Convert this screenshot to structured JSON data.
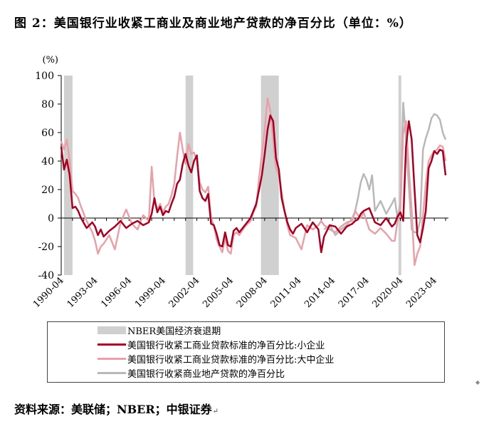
{
  "title": "图 2：美国银行业收紧工商业及商业地产贷款的净百分比（单位：%）",
  "source": "资料来源：美联储；NBER；中银证券",
  "chart_data": {
    "type": "line",
    "ylabel": "(%)",
    "ylim": [
      -40,
      100
    ],
    "yticks": [
      -40,
      -20,
      0,
      20,
      40,
      60,
      80,
      100
    ],
    "xlim": [
      1990.25,
      2024.5
    ],
    "xtick_labels": [
      "1990-04",
      "1993-04",
      "1996-04",
      "1999-04",
      "2002-04",
      "2005-04",
      "2008-04",
      "2011-04",
      "2014-04",
      "2017-04",
      "2020-04",
      "2023-04"
    ],
    "grid": false,
    "legend_position": "bottom",
    "recessions": [
      {
        "name": "NBER美国经济衰退期",
        "color": "#d0d0d0",
        "periods": [
          [
            1990.5,
            1991.25
          ],
          [
            2001.25,
            2001.92
          ],
          [
            2007.92,
            2009.5
          ],
          [
            2020.08,
            2020.33
          ]
        ]
      }
    ],
    "series": [
      {
        "name": "美国银行收紧工商业贷款标准的净百分比:小企业",
        "color": "#a50021",
        "x": [
          1990.25,
          1990.5,
          1990.75,
          1991.0,
          1991.25,
          1991.5,
          1991.75,
          1992.0,
          1992.5,
          1993.0,
          1993.25,
          1993.5,
          1993.75,
          1994.0,
          1994.5,
          1995.0,
          1995.5,
          1996.0,
          1996.5,
          1997.0,
          1997.5,
          1998.0,
          1998.25,
          1998.5,
          1998.75,
          1999.0,
          1999.25,
          1999.5,
          1999.75,
          2000.0,
          2000.25,
          2000.5,
          2000.75,
          2001.0,
          2001.25,
          2001.5,
          2001.75,
          2002.0,
          2002.25,
          2002.5,
          2002.75,
          2003.0,
          2003.25,
          2003.5,
          2003.75,
          2004.0,
          2004.25,
          2004.5,
          2004.75,
          2005.0,
          2005.25,
          2005.5,
          2005.75,
          2006.0,
          2006.5,
          2007.0,
          2007.25,
          2007.5,
          2007.75,
          2008.0,
          2008.25,
          2008.5,
          2008.75,
          2009.0,
          2009.25,
          2009.5,
          2009.75,
          2010.0,
          2010.25,
          2010.5,
          2010.75,
          2011.0,
          2011.5,
          2012.0,
          2012.5,
          2013.0,
          2013.25,
          2013.5,
          2014.0,
          2014.5,
          2015.0,
          2015.5,
          2016.0,
          2016.25,
          2016.5,
          2016.75,
          2017.0,
          2017.5,
          2018.0,
          2018.5,
          2019.0,
          2019.5,
          2019.75,
          2020.0,
          2020.25,
          2020.5,
          2020.75,
          2021.0,
          2021.25,
          2021.5,
          2021.75,
          2022.0,
          2022.25,
          2022.5,
          2022.75,
          2023.0,
          2023.25,
          2023.5,
          2023.75,
          2024.0,
          2024.25
        ],
        "values": [
          50,
          34,
          41,
          30,
          7,
          8,
          5,
          0,
          -7,
          -3,
          -6,
          -12,
          -8,
          -13,
          -9,
          -6,
          -2,
          -7,
          -4,
          -2,
          -5,
          -3,
          3,
          14,
          4,
          8,
          2,
          5,
          4,
          10,
          15,
          24,
          27,
          38,
          45,
          37,
          32,
          40,
          44,
          19,
          14,
          12,
          17,
          -4,
          -5,
          -11,
          -19,
          -20,
          -10,
          -19,
          -20,
          -9,
          -7,
          -10,
          -5,
          0,
          5,
          10,
          20,
          30,
          45,
          62,
          72,
          68,
          42,
          34,
          14,
          5,
          -3,
          -8,
          -11,
          -7,
          -4,
          -10,
          -3,
          -8,
          -24,
          -13,
          -5,
          -6,
          -11,
          -6,
          -4,
          -2,
          -1,
          3,
          5,
          7,
          -3,
          -5,
          0,
          -6,
          -4,
          1,
          4,
          -2,
          50,
          68,
          55,
          20,
          -12,
          -17,
          -7,
          5,
          35,
          40,
          47,
          45,
          48,
          47,
          30
        ]
      },
      {
        "name": "美国银行收紧工商业贷款标准的净百分比:大中企业",
        "color": "#e8a1a8",
        "x": [
          1990.25,
          1990.5,
          1990.75,
          1991.0,
          1991.25,
          1991.5,
          1991.75,
          1992.0,
          1992.5,
          1993.0,
          1993.25,
          1993.5,
          1993.75,
          1994.0,
          1994.5,
          1995.0,
          1995.5,
          1996.0,
          1996.5,
          1997.0,
          1997.5,
          1998.0,
          1998.25,
          1998.5,
          1998.75,
          1999.0,
          1999.25,
          1999.5,
          1999.75,
          2000.0,
          2000.25,
          2000.5,
          2000.75,
          2001.0,
          2001.25,
          2001.5,
          2001.75,
          2002.0,
          2002.25,
          2002.5,
          2002.75,
          2003.0,
          2003.25,
          2003.5,
          2003.75,
          2004.0,
          2004.25,
          2004.5,
          2004.75,
          2005.0,
          2005.25,
          2005.5,
          2005.75,
          2006.0,
          2006.5,
          2007.0,
          2007.25,
          2007.5,
          2007.75,
          2008.0,
          2008.25,
          2008.5,
          2008.75,
          2009.0,
          2009.25,
          2009.5,
          2009.75,
          2010.0,
          2010.25,
          2010.5,
          2010.75,
          2011.0,
          2011.5,
          2012.0,
          2012.5,
          2013.0,
          2013.25,
          2013.5,
          2014.0,
          2014.5,
          2015.0,
          2015.5,
          2016.0,
          2016.25,
          2016.5,
          2016.75,
          2017.0,
          2017.5,
          2018.0,
          2018.5,
          2019.0,
          2019.5,
          2019.75,
          2020.0,
          2020.25,
          2020.5,
          2020.75,
          2021.0,
          2021.25,
          2021.5,
          2021.75,
          2022.0,
          2022.25,
          2022.5,
          2022.75,
          2023.0,
          2023.25,
          2023.5,
          2023.75,
          2024.0,
          2024.25
        ],
        "values": [
          54,
          48,
          55,
          40,
          19,
          17,
          14,
          8,
          -2,
          -10,
          -16,
          -25,
          -20,
          -18,
          -12,
          -22,
          -3,
          6,
          -4,
          -8,
          2,
          -2,
          36,
          11,
          6,
          10,
          4,
          8,
          10,
          16,
          24,
          43,
          60,
          48,
          38,
          52,
          45,
          46,
          40,
          25,
          20,
          18,
          22,
          0,
          -5,
          -15,
          -20,
          -24,
          -14,
          -23,
          -25,
          -12,
          -10,
          -12,
          -6,
          -2,
          4,
          8,
          28,
          45,
          62,
          84,
          75,
          55,
          35,
          30,
          18,
          5,
          -5,
          -12,
          -13,
          -14,
          -22,
          -5,
          -8,
          -5,
          -2,
          -5,
          -8,
          -10,
          -6,
          -3,
          -2,
          5,
          2,
          0,
          4,
          -8,
          -11,
          -7,
          -11,
          -16,
          -16,
          -2,
          6,
          60,
          68,
          35,
          5,
          -33,
          -25,
          -20,
          2,
          24,
          40,
          44,
          47,
          48,
          51,
          50,
          40
        ]
      },
      {
        "name": "美国银行收紧商业地产贷款的净百分比",
        "color": "#b8b8b8",
        "x": [
          2013.5,
          2014.0,
          2014.5,
          2015.0,
          2015.5,
          2016.0,
          2016.25,
          2016.5,
          2016.75,
          2017.0,
          2017.25,
          2017.5,
          2017.75,
          2018.0,
          2018.5,
          2019.0,
          2019.5,
          2019.75,
          2020.0,
          2020.25,
          2020.5,
          2020.75,
          2021.0,
          2021.25,
          2021.5,
          2021.75,
          2022.0,
          2022.25,
          2022.5,
          2022.75,
          2023.0,
          2023.25,
          2023.5,
          2023.75,
          2024.0,
          2024.25
        ],
        "values": [
          -8,
          -5,
          -12,
          -8,
          -5,
          0,
          5,
          14,
          25,
          31,
          27,
          20,
          30,
          5,
          12,
          3,
          10,
          14,
          0,
          10,
          81,
          55,
          22,
          -8,
          -10,
          -10,
          -2,
          48,
          56,
          62,
          70,
          73,
          72,
          69,
          60,
          55
        ]
      }
    ]
  }
}
